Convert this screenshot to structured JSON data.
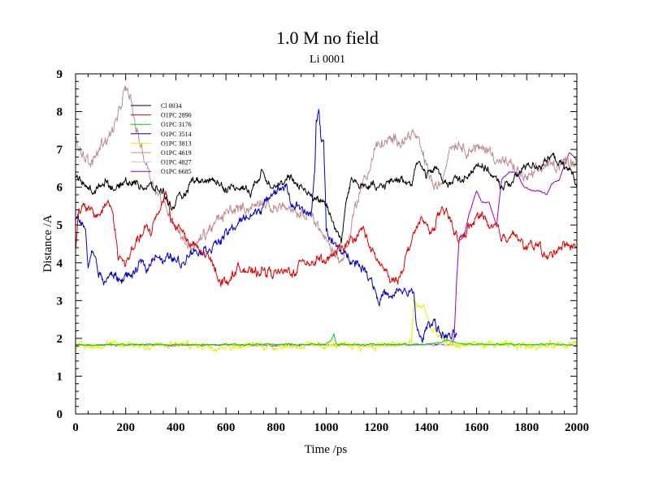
{
  "chart_data": {
    "type": "line",
    "title": "1.0 M no field",
    "subtitle": "Li 0001",
    "xlabel": "Time /ps",
    "ylabel": "Distance /A",
    "xlim": [
      0,
      2000
    ],
    "ylim": [
      0,
      9
    ],
    "x_ticks": [
      "0",
      "200",
      "400",
      "600",
      "800",
      "1000",
      "1200",
      "1400",
      "1600",
      "1800",
      "2000"
    ],
    "y_ticks": [
      "0",
      "1",
      "2",
      "3",
      "4",
      "5",
      "6",
      "7",
      "8",
      "9"
    ],
    "series": [
      {
        "name": "Cl 0034",
        "color": "#000000",
        "noise": 0.14,
        "points": [
          [
            0,
            6.3
          ],
          [
            40,
            6.0
          ],
          [
            80,
            5.9
          ],
          [
            120,
            6.2
          ],
          [
            160,
            5.9
          ],
          [
            200,
            6.2
          ],
          [
            250,
            6.1
          ],
          [
            300,
            6.0
          ],
          [
            350,
            5.9
          ],
          [
            380,
            5.4
          ],
          [
            400,
            5.6
          ],
          [
            440,
            5.8
          ],
          [
            470,
            6.2
          ],
          [
            500,
            6.1
          ],
          [
            550,
            6.2
          ],
          [
            600,
            6.0
          ],
          [
            650,
            6.0
          ],
          [
            700,
            5.9
          ],
          [
            740,
            6.4
          ],
          [
            780,
            6.1
          ],
          [
            820,
            6.1
          ],
          [
            860,
            6.2
          ],
          [
            900,
            6.0
          ],
          [
            950,
            5.7
          ],
          [
            1000,
            5.6
          ],
          [
            1020,
            5.2
          ],
          [
            1040,
            4.9
          ],
          [
            1060,
            4.6
          ],
          [
            1080,
            5.6
          ],
          [
            1100,
            6.2
          ],
          [
            1150,
            6.1
          ],
          [
            1200,
            6.0
          ],
          [
            1250,
            6.1
          ],
          [
            1300,
            6.2
          ],
          [
            1340,
            6.1
          ],
          [
            1360,
            6.7
          ],
          [
            1400,
            6.3
          ],
          [
            1440,
            6.5
          ],
          [
            1480,
            6.1
          ],
          [
            1520,
            6.2
          ],
          [
            1560,
            6.2
          ],
          [
            1600,
            6.7
          ],
          [
            1650,
            6.4
          ],
          [
            1700,
            6.0
          ],
          [
            1750,
            6.2
          ],
          [
            1800,
            6.6
          ],
          [
            1850,
            6.6
          ],
          [
            1900,
            6.8
          ],
          [
            1950,
            6.5
          ],
          [
            1980,
            6.4
          ],
          [
            2000,
            6.1
          ]
        ]
      },
      {
        "name": "O1PC 2890",
        "color": "#dd0000",
        "noise": 0.16,
        "points": [
          [
            0,
            4.3
          ],
          [
            10,
            5.3
          ],
          [
            40,
            5.5
          ],
          [
            80,
            5.2
          ],
          [
            110,
            5.4
          ],
          [
            130,
            5.7
          ],
          [
            150,
            5.3
          ],
          [
            170,
            4.2
          ],
          [
            200,
            4.0
          ],
          [
            220,
            4.2
          ],
          [
            250,
            4.6
          ],
          [
            280,
            4.9
          ],
          [
            300,
            4.8
          ],
          [
            320,
            5.2
          ],
          [
            350,
            5.7
          ],
          [
            360,
            6.0
          ],
          [
            380,
            5.2
          ],
          [
            400,
            4.9
          ],
          [
            420,
            5.0
          ],
          [
            450,
            4.5
          ],
          [
            500,
            4.3
          ],
          [
            550,
            4.0
          ],
          [
            580,
            3.5
          ],
          [
            620,
            3.6
          ],
          [
            650,
            3.9
          ],
          [
            700,
            3.7
          ],
          [
            750,
            3.8
          ],
          [
            800,
            3.7
          ],
          [
            850,
            3.8
          ],
          [
            880,
            3.7
          ],
          [
            900,
            4.1
          ],
          [
            940,
            4.0
          ],
          [
            970,
            4.1
          ],
          [
            1000,
            4.0
          ],
          [
            1030,
            4.2
          ],
          [
            1060,
            4.4
          ],
          [
            1100,
            4.6
          ],
          [
            1150,
            4.9
          ],
          [
            1180,
            4.3
          ],
          [
            1200,
            4.1
          ],
          [
            1230,
            3.8
          ],
          [
            1260,
            3.5
          ],
          [
            1290,
            3.6
          ],
          [
            1320,
            4.2
          ],
          [
            1350,
            4.8
          ],
          [
            1380,
            5.1
          ],
          [
            1400,
            5.0
          ],
          [
            1420,
            4.8
          ],
          [
            1450,
            5.3
          ],
          [
            1480,
            5.3
          ],
          [
            1500,
            5.1
          ],
          [
            1530,
            4.6
          ],
          [
            1560,
            4.8
          ],
          [
            1600,
            5.2
          ],
          [
            1630,
            5.3
          ],
          [
            1650,
            4.9
          ],
          [
            1680,
            5.0
          ],
          [
            1700,
            4.7
          ],
          [
            1740,
            4.8
          ],
          [
            1780,
            4.5
          ],
          [
            1800,
            4.4
          ],
          [
            1850,
            4.5
          ],
          [
            1880,
            4.1
          ],
          [
            1900,
            4.2
          ],
          [
            1940,
            4.5
          ],
          [
            1970,
            4.4
          ],
          [
            2000,
            4.4
          ]
        ]
      },
      {
        "name": "O1PC 3176",
        "color": "#00cc00",
        "noise": 0.025,
        "points": [
          [
            0,
            1.83
          ],
          [
            500,
            1.84
          ],
          [
            1000,
            1.84
          ],
          [
            1020,
            1.95
          ],
          [
            1030,
            2.1
          ],
          [
            1040,
            1.85
          ],
          [
            1200,
            1.84
          ],
          [
            1400,
            1.84
          ],
          [
            1460,
            1.9
          ],
          [
            1480,
            1.96
          ],
          [
            1500,
            1.92
          ],
          [
            1550,
            1.85
          ],
          [
            1800,
            1.84
          ],
          [
            1900,
            1.85
          ],
          [
            2000,
            1.82
          ]
        ]
      },
      {
        "name": "O1PC 3514",
        "color": "#0000cc",
        "noise": 0.16,
        "points": [
          [
            0,
            5.2
          ],
          [
            20,
            5.1
          ],
          [
            40,
            4.8
          ],
          [
            50,
            3.9
          ],
          [
            70,
            4.3
          ],
          [
            90,
            3.8
          ],
          [
            110,
            3.5
          ],
          [
            150,
            3.7
          ],
          [
            180,
            3.5
          ],
          [
            200,
            3.7
          ],
          [
            230,
            3.6
          ],
          [
            260,
            4.0
          ],
          [
            290,
            3.9
          ],
          [
            320,
            4.3
          ],
          [
            350,
            4.0
          ],
          [
            380,
            4.2
          ],
          [
            400,
            4.1
          ],
          [
            430,
            4.0
          ],
          [
            460,
            4.3
          ],
          [
            500,
            4.3
          ],
          [
            540,
            4.4
          ],
          [
            580,
            4.6
          ],
          [
            620,
            4.9
          ],
          [
            660,
            5.1
          ],
          [
            700,
            5.3
          ],
          [
            740,
            5.4
          ],
          [
            780,
            5.8
          ],
          [
            800,
            5.9
          ],
          [
            840,
            6.0
          ],
          [
            860,
            5.6
          ],
          [
            880,
            5.5
          ],
          [
            900,
            5.4
          ],
          [
            940,
            5.2
          ],
          [
            955,
            6.5
          ],
          [
            960,
            7.8
          ],
          [
            970,
            8.0
          ],
          [
            980,
            7.2
          ],
          [
            990,
            7.3
          ],
          [
            1000,
            4.9
          ],
          [
            1020,
            4.6
          ],
          [
            1040,
            4.4
          ],
          [
            1080,
            4.2
          ],
          [
            1100,
            4.1
          ],
          [
            1140,
            3.9
          ],
          [
            1180,
            3.6
          ],
          [
            1210,
            3.0
          ],
          [
            1230,
            3.2
          ],
          [
            1260,
            3.0
          ],
          [
            1290,
            3.3
          ],
          [
            1330,
            3.2
          ],
          [
            1350,
            3.1
          ],
          [
            1360,
            2.4
          ],
          [
            1380,
            1.9
          ],
          [
            1400,
            2.3
          ],
          [
            1430,
            2.5
          ],
          [
            1450,
            2.2
          ],
          [
            1470,
            2.1
          ],
          [
            1500,
            2.0
          ],
          [
            1520,
            2.1
          ]
        ]
      },
      {
        "name": "O1PC 3813",
        "color": "#eeee00",
        "noise": 0.12,
        "points": [
          [
            0,
            1.81
          ],
          [
            1300,
            1.82
          ],
          [
            1340,
            1.9
          ],
          [
            1350,
            3.0
          ],
          [
            1370,
            2.8
          ],
          [
            1390,
            2.9
          ],
          [
            1400,
            2.6
          ],
          [
            1420,
            2.2
          ],
          [
            1440,
            2.1
          ],
          [
            1460,
            1.95
          ],
          [
            1480,
            1.85
          ],
          [
            1500,
            1.82
          ],
          [
            2000,
            1.82
          ]
        ]
      },
      {
        "name": "O1PC 4619",
        "color": "#bc8f8f",
        "noise": 0.2,
        "points": [
          [
            0,
            7.3
          ],
          [
            30,
            6.9
          ],
          [
            60,
            6.5
          ],
          [
            100,
            7.2
          ],
          [
            140,
            7.4
          ],
          [
            170,
            7.9
          ],
          [
            200,
            8.6
          ],
          [
            220,
            8.4
          ],
          [
            240,
            7.6
          ],
          [
            270,
            6.9
          ],
          [
            300,
            6.3
          ],
          [
            330,
            5.8
          ],
          [
            360,
            5.5
          ],
          [
            400,
            5.0
          ],
          [
            430,
            4.6
          ],
          [
            460,
            4.4
          ],
          [
            500,
            4.6
          ],
          [
            540,
            4.9
          ],
          [
            580,
            5.2
          ],
          [
            620,
            5.4
          ],
          [
            660,
            5.5
          ],
          [
            700,
            5.4
          ],
          [
            740,
            5.6
          ],
          [
            780,
            5.4
          ],
          [
            820,
            5.6
          ],
          [
            860,
            5.3
          ],
          [
            900,
            5.2
          ],
          [
            940,
            5.3
          ],
          [
            960,
            5.1
          ],
          [
            1000,
            4.6
          ],
          [
            1030,
            4.3
          ],
          [
            1060,
            4.0
          ],
          [
            1080,
            4.4
          ],
          [
            1100,
            5.0
          ],
          [
            1120,
            5.6
          ],
          [
            1140,
            6.0
          ],
          [
            1160,
            6.2
          ],
          [
            1180,
            6.7
          ],
          [
            1200,
            7.1
          ],
          [
            1240,
            7.2
          ],
          [
            1280,
            7.2
          ],
          [
            1320,
            7.3
          ],
          [
            1340,
            7.5
          ],
          [
            1370,
            7.2
          ],
          [
            1400,
            6.6
          ],
          [
            1430,
            6.0
          ],
          [
            1460,
            6.1
          ],
          [
            1490,
            7.0
          ],
          [
            1520,
            7.2
          ],
          [
            1560,
            7.0
          ],
          [
            1600,
            7.0
          ],
          [
            1640,
            7.0
          ],
          [
            1680,
            6.8
          ],
          [
            1720,
            6.6
          ],
          [
            1760,
            6.4
          ],
          [
            1800,
            6.2
          ],
          [
            1840,
            6.4
          ],
          [
            1880,
            6.6
          ],
          [
            1920,
            6.6
          ],
          [
            1960,
            6.7
          ],
          [
            2000,
            6.7
          ]
        ]
      },
      {
        "name": "O1PC 4827",
        "color": "#cccccc",
        "noise": 0.02,
        "points": [
          [
            0,
            1.82
          ],
          [
            1000,
            1.82
          ],
          [
            2000,
            1.82
          ]
        ]
      },
      {
        "name": "O1PC 6685",
        "color": "#9900cc",
        "noise": 0.025,
        "points": [
          [
            0,
            1.82
          ],
          [
            1000,
            1.82
          ],
          [
            1500,
            1.83
          ],
          [
            1510,
            2.0
          ],
          [
            1520,
            3.5
          ],
          [
            1530,
            4.6
          ],
          [
            1550,
            4.7
          ],
          [
            1570,
            5.3
          ],
          [
            1600,
            5.9
          ],
          [
            1620,
            5.6
          ],
          [
            1650,
            5.6
          ],
          [
            1680,
            5.0
          ],
          [
            1700,
            6.2
          ],
          [
            1730,
            6.4
          ],
          [
            1760,
            6.4
          ],
          [
            1790,
            6.0
          ],
          [
            1820,
            5.9
          ],
          [
            1850,
            5.9
          ],
          [
            1880,
            5.8
          ],
          [
            1900,
            6.1
          ],
          [
            1930,
            6.2
          ],
          [
            1950,
            6.6
          ],
          [
            1970,
            6.9
          ],
          [
            1990,
            6.8
          ],
          [
            2000,
            6.7
          ]
        ]
      }
    ]
  }
}
